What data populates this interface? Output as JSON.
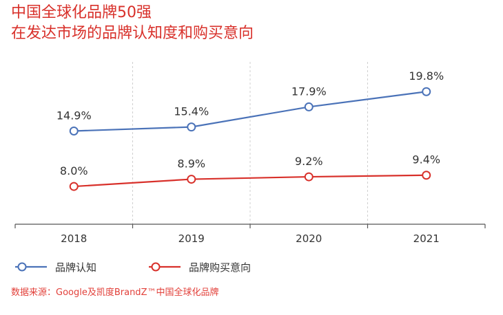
{
  "header": {
    "title_line1": "中国全球化品牌50强",
    "title_line2": "在发达市场的品牌认知度和购买意向"
  },
  "chart_data": {
    "type": "line",
    "x": [
      "2018",
      "2019",
      "2020",
      "2021"
    ],
    "series": [
      {
        "name": "品牌认知",
        "values": [
          14.9,
          15.4,
          17.9,
          19.8
        ],
        "labels": [
          "14.9%",
          "15.4%",
          "17.9%",
          "19.8%"
        ],
        "color": "#4a72b8"
      },
      {
        "name": "品牌购买意向",
        "values": [
          8.0,
          8.9,
          9.2,
          9.4
        ],
        "labels": [
          "8.0%",
          "8.9%",
          "9.2%",
          "9.4%"
        ],
        "color": "#d8302a"
      }
    ],
    "ylim": [
      3.3,
      23.5
    ],
    "grid": "vertical-dashed",
    "legend_position": "bottom-left"
  },
  "footer": {
    "source": "数据来源：Google及凯度BrandZ™中国全球化品牌"
  },
  "colors": {
    "title": "#d8302a",
    "source": "#e2403a",
    "axis": "#555555",
    "grid": "#cfcfcf"
  }
}
